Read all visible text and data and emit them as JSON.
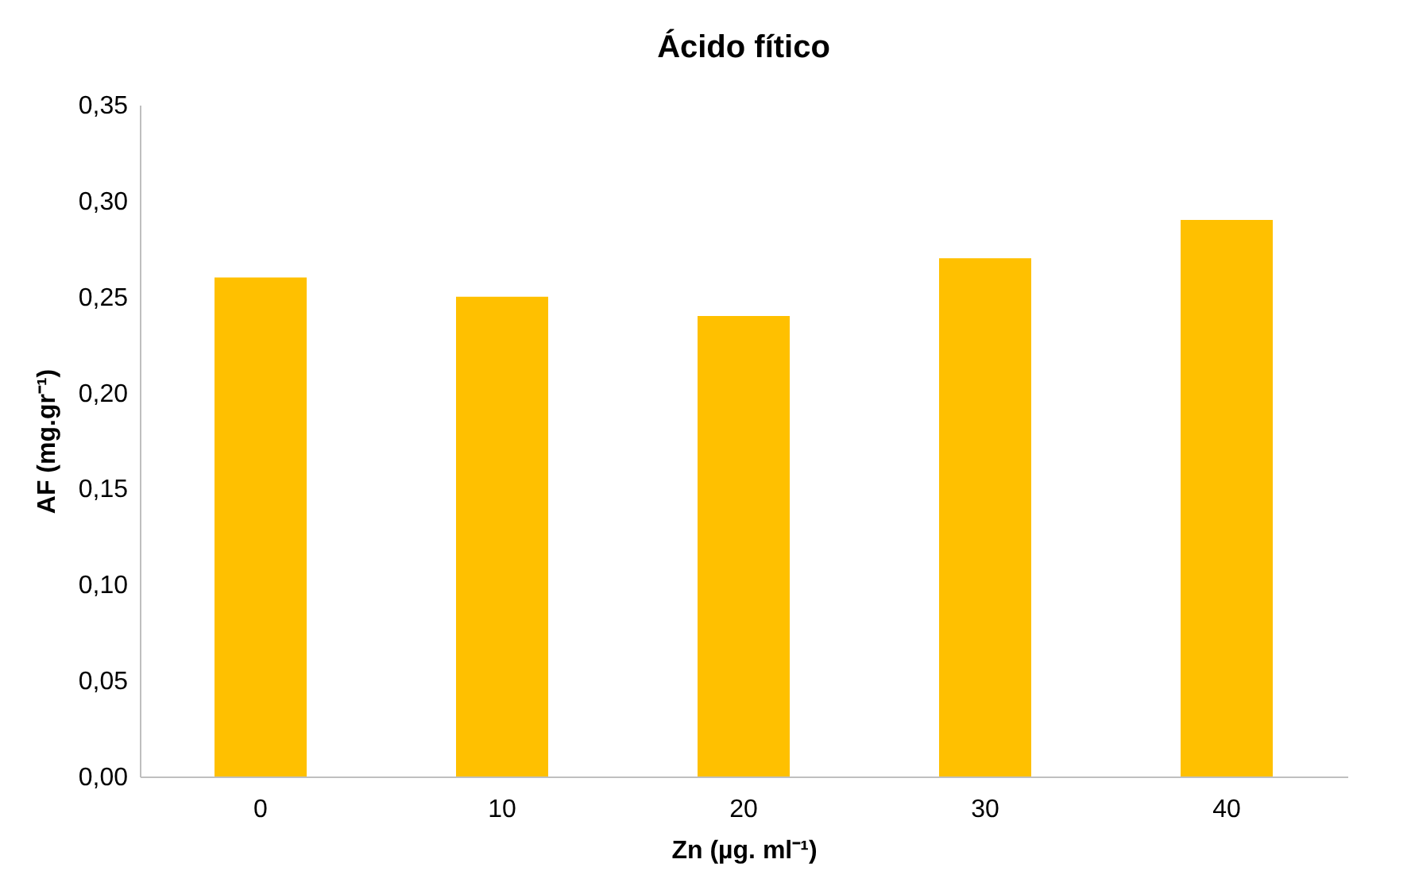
{
  "chart_data": {
    "type": "bar",
    "title": "Ácido fítico",
    "xlabel": "Zn (µg. ml⁻¹)",
    "ylabel": "AF (mg.gr⁻¹)",
    "categories": [
      "0",
      "10",
      "20",
      "30",
      "40"
    ],
    "values": [
      0.26,
      0.25,
      0.24,
      0.27,
      0.29
    ],
    "color": "#ffc000",
    "ylim": [
      0,
      0.35
    ],
    "yticks": [
      {
        "value": 0,
        "label": "0,00"
      },
      {
        "value": 0.05,
        "label": "0,05"
      },
      {
        "value": 0.1,
        "label": "0,10"
      },
      {
        "value": 0.15,
        "label": "0,15"
      },
      {
        "value": 0.2,
        "label": "0,20"
      },
      {
        "value": 0.25,
        "label": "0,25"
      },
      {
        "value": 0.3,
        "label": "0,30"
      },
      {
        "value": 0.35,
        "label": "0,35"
      }
    ],
    "grid": false
  }
}
